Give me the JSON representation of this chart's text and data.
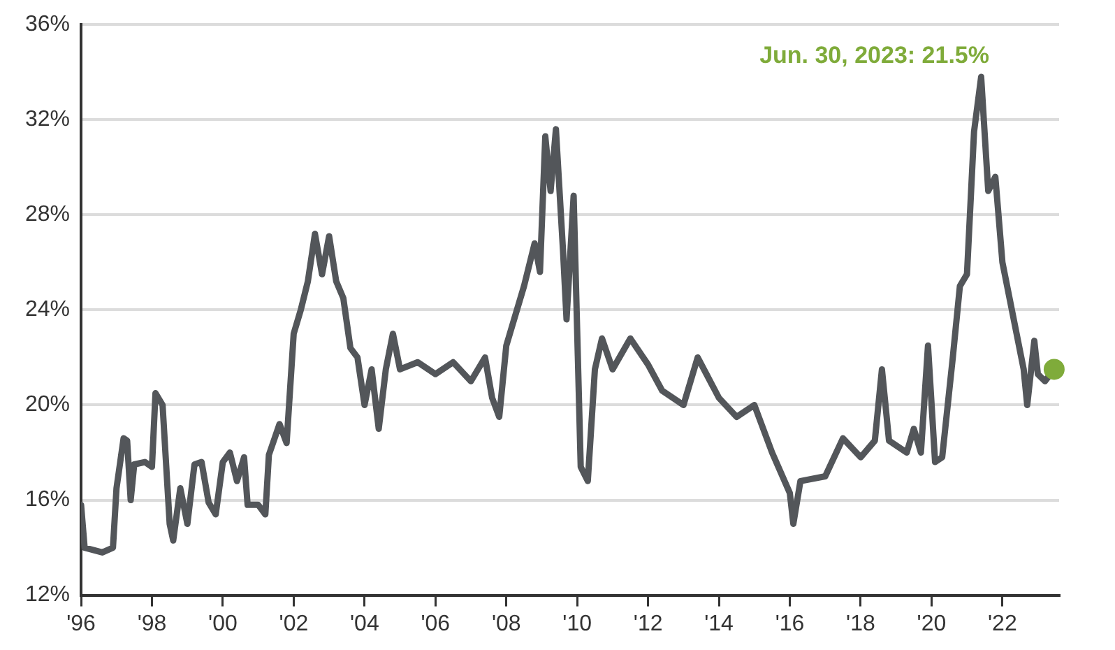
{
  "chart_data": {
    "type": "line",
    "annotations": [
      "Jun. 30, 2023: 21.5%"
    ],
    "xlim": [
      1996,
      2023.6
    ],
    "xticks": [
      {
        "value": 1996,
        "label": "'96"
      },
      {
        "value": 1998,
        "label": "'98"
      },
      {
        "value": 2000,
        "label": "'00"
      },
      {
        "value": 2002,
        "label": "'02"
      },
      {
        "value": 2004,
        "label": "'04"
      },
      {
        "value": 2006,
        "label": "'06"
      },
      {
        "value": 2008,
        "label": "'08"
      },
      {
        "value": 2010,
        "label": "'10"
      },
      {
        "value": 2012,
        "label": "'12"
      },
      {
        "value": 2014,
        "label": "'14"
      },
      {
        "value": 2016,
        "label": "'16"
      },
      {
        "value": 2018,
        "label": "'18"
      },
      {
        "value": 2020,
        "label": "'20"
      },
      {
        "value": 2022,
        "label": "'22"
      }
    ],
    "ylim": [
      12,
      36
    ],
    "yticks": [
      {
        "value": 12,
        "label": "12%"
      },
      {
        "value": 16,
        "label": "16%"
      },
      {
        "value": 20,
        "label": "20%"
      },
      {
        "value": 24,
        "label": "24%"
      },
      {
        "value": 28,
        "label": "28%"
      },
      {
        "value": 32,
        "label": "32%"
      },
      {
        "value": 36,
        "label": "36%"
      }
    ],
    "grid": "y",
    "legend": false,
    "series": [
      {
        "color": "#53565a",
        "marker": "none",
        "x": [
          1996.0,
          1996.1,
          1996.6,
          1996.9,
          1997.0,
          1997.2,
          1997.3,
          1997.4,
          1997.5,
          1997.8,
          1998.0,
          1998.1,
          1998.3,
          1998.5,
          1998.6,
          1998.8,
          1999.0,
          1999.2,
          1999.4,
          1999.6,
          1999.8,
          2000.0,
          2000.2,
          2000.4,
          2000.6,
          2000.7,
          2001.0,
          2001.2,
          2001.3,
          2001.6,
          2001.8,
          2002.0,
          2002.2,
          2002.4,
          2002.6,
          2002.8,
          2003.0,
          2003.2,
          2003.4,
          2003.6,
          2003.8,
          2004.0,
          2004.2,
          2004.4,
          2004.6,
          2004.8,
          2005.0,
          2005.5,
          2006.0,
          2006.5,
          2007.0,
          2007.4,
          2007.6,
          2007.8,
          2008.0,
          2008.2,
          2008.5,
          2008.8,
          2008.95,
          2009.1,
          2009.25,
          2009.4,
          2009.6,
          2009.7,
          2009.9,
          2010.1,
          2010.3,
          2010.5,
          2010.7,
          2011.0,
          2011.5,
          2012.0,
          2012.4,
          2013.0,
          2013.4,
          2014.0,
          2014.5,
          2015.0,
          2015.5,
          2016.0,
          2016.1,
          2016.3,
          2017.0,
          2017.5,
          2018.0,
          2018.4,
          2018.6,
          2018.8,
          2019.3,
          2019.5,
          2019.7,
          2019.9,
          2020.1,
          2020.3,
          2020.6,
          2020.8,
          2021.0,
          2021.2,
          2021.4,
          2021.6,
          2021.8,
          2022.0,
          2022.4,
          2022.6,
          2022.7,
          2022.9,
          2023.0,
          2023.2,
          2023.46
        ],
        "values": [
          15.8,
          14.0,
          13.8,
          14.0,
          16.5,
          18.6,
          18.5,
          16.0,
          17.5,
          17.6,
          17.4,
          20.5,
          20.0,
          15.0,
          14.3,
          16.5,
          15.0,
          17.5,
          17.6,
          15.9,
          15.4,
          17.6,
          18.0,
          16.8,
          17.8,
          15.8,
          15.8,
          15.4,
          17.9,
          19.2,
          18.4,
          23.0,
          24.0,
          25.2,
          27.2,
          25.5,
          27.1,
          25.2,
          24.5,
          22.4,
          22.0,
          20.0,
          21.5,
          19.0,
          21.5,
          23.0,
          21.5,
          21.8,
          21.3,
          21.8,
          21.0,
          22.0,
          20.3,
          19.5,
          22.5,
          23.5,
          25.0,
          26.8,
          25.6,
          31.3,
          29.0,
          31.6,
          26.5,
          23.6,
          28.8,
          17.4,
          16.8,
          21.5,
          22.8,
          21.5,
          22.8,
          21.7,
          20.6,
          20.0,
          22.0,
          20.3,
          19.5,
          20.0,
          18.0,
          16.3,
          15.0,
          16.8,
          17.0,
          18.6,
          17.8,
          18.5,
          21.5,
          18.5,
          18.0,
          19.0,
          18.0,
          22.5,
          17.6,
          17.8,
          22.0,
          25.0,
          25.5,
          31.5,
          33.8,
          29.0,
          29.6,
          26.0,
          23.0,
          21.5,
          20.0,
          22.7,
          21.3,
          21.0,
          21.5
        ]
      },
      {
        "type": "scatter",
        "color": "#7fab3a",
        "marker": "circle",
        "x": [
          2023.46
        ],
        "values": [
          21.5
        ]
      }
    ]
  }
}
